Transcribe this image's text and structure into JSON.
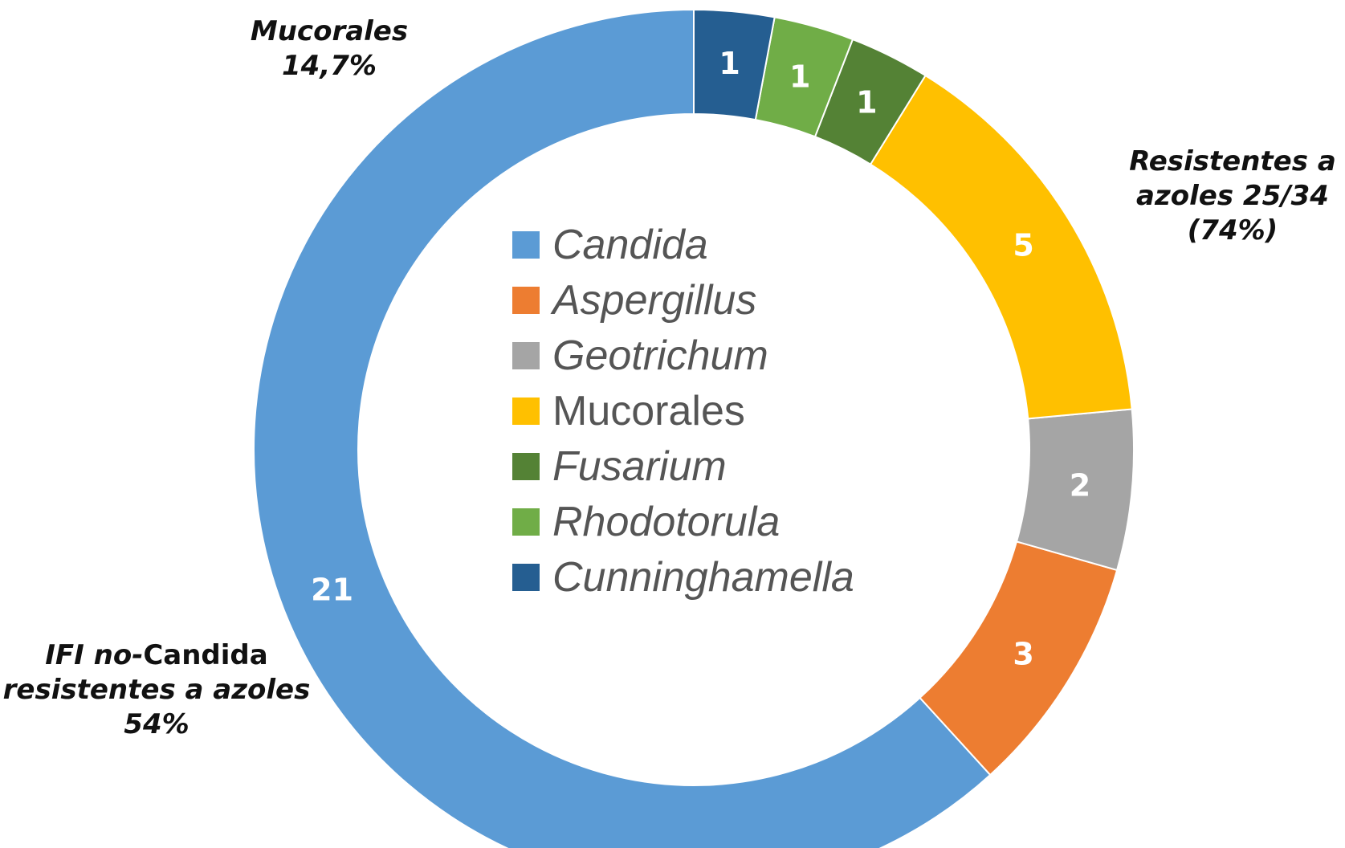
{
  "chart_data": {
    "type": "pie",
    "variant": "donut",
    "categories": [
      "Candida",
      "Aspergillus",
      "Geotrichum",
      "Mucorales",
      "Fusarium",
      "Rhodotorula",
      "Cunninghamella"
    ],
    "values": [
      21,
      3,
      2,
      5,
      1,
      1,
      1
    ],
    "data_labels": [
      "21",
      "3",
      "2",
      "5",
      "1",
      "1",
      "1"
    ],
    "colors": [
      "#5b9bd5",
      "#ed7d31",
      "#a5a5a5",
      "#ffc000",
      "#548235",
      "#70ad47",
      "#255e91"
    ],
    "legend": {
      "placement": "center",
      "entries": [
        {
          "label": "Candida",
          "italic": true
        },
        {
          "label": "Aspergillus",
          "italic": true
        },
        {
          "label": "Geotrichum",
          "italic": true
        },
        {
          "label": "Mucorales",
          "italic": false
        },
        {
          "label": "Fusarium",
          "italic": true
        },
        {
          "label": "Rhodotorula",
          "italic": true
        },
        {
          "label": "Cunninghamella",
          "italic": true
        }
      ]
    },
    "annotations": {
      "mucorales": {
        "line1": "Mucorales",
        "line2": "14,7%"
      },
      "resistentes": {
        "line1": "Resistentes a",
        "line2": "azoles 25/34",
        "line3": "(74%)"
      },
      "ifi": {
        "line1_italic": "IFI no-",
        "line1_normal": "Candida",
        "line2": "resistentes a azoles",
        "line3": "54%"
      }
    }
  }
}
